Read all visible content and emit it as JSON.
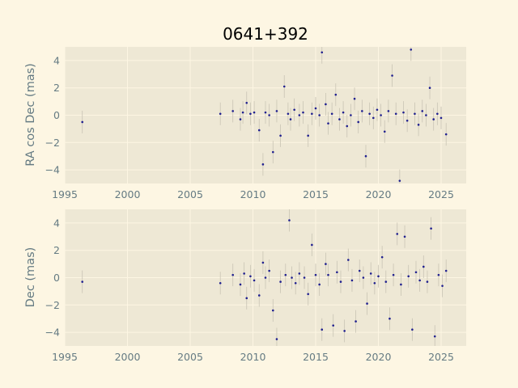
{
  "chart_data": [
    {
      "type": "scatter",
      "title": "0641+392",
      "xlabel": "",
      "ylabel": "RA cos Dec (mas)",
      "xlim": [
        1995,
        2027
      ],
      "ylim": [
        -5,
        5
      ],
      "xticks": [
        "1995",
        "2000",
        "2005",
        "2010",
        "2015",
        "2020",
        "2025"
      ],
      "yticks": [
        "−4",
        "−2",
        "0",
        "2",
        "4"
      ],
      "grid": true,
      "series": [
        {
          "color": "#1f1f8f",
          "x": [
            1996.4,
            2007.4,
            2008.4,
            2009.0,
            2009.2,
            2009.5,
            2009.8,
            2010.1,
            2010.5,
            2010.8,
            2011.0,
            2011.3,
            2011.6,
            2011.9,
            2012.2,
            2012.5,
            2012.8,
            2013.0,
            2013.3,
            2013.7,
            2014.0,
            2014.4,
            2014.7,
            2015.0,
            2015.3,
            2015.5,
            2015.8,
            2016.0,
            2016.3,
            2016.6,
            2016.9,
            2017.2,
            2017.5,
            2017.8,
            2018.1,
            2018.4,
            2018.7,
            2019.0,
            2019.3,
            2019.6,
            2019.9,
            2020.2,
            2020.5,
            2020.8,
            2021.1,
            2021.4,
            2021.7,
            2022.0,
            2022.3,
            2022.6,
            2022.9,
            2023.2,
            2023.5,
            2023.8,
            2024.1,
            2024.4,
            2024.7,
            2025.0,
            2025.4
          ],
          "y": [
            -0.5,
            0.1,
            0.3,
            -0.3,
            0.2,
            0.9,
            0.1,
            0.2,
            -1.1,
            -3.6,
            0.2,
            0.0,
            -2.7,
            0.3,
            -1.5,
            2.1,
            0.1,
            -0.3,
            0.4,
            0.0,
            0.2,
            -1.5,
            0.1,
            0.5,
            0.0,
            4.6,
            0.8,
            -0.6,
            0.1,
            1.5,
            -0.3,
            0.2,
            -0.8,
            0.0,
            1.2,
            -0.5,
            0.3,
            -3.0,
            0.1,
            -0.2,
            0.4,
            0.0,
            -1.2,
            0.3,
            2.9,
            0.1,
            -4.8,
            0.2,
            -0.4,
            4.8,
            0.1,
            -0.7,
            0.3,
            0.0,
            2.0,
            -0.3,
            0.1,
            -0.2,
            -1.4
          ]
        }
      ]
    },
    {
      "type": "scatter",
      "title": "",
      "xlabel": "",
      "ylabel": "Dec (mas)",
      "xlim": [
        1995,
        2027
      ],
      "ylim": [
        -5,
        5
      ],
      "xticks": [
        "1995",
        "2000",
        "2005",
        "2010",
        "2015",
        "2020",
        "2025"
      ],
      "yticks": [
        "−4",
        "−2",
        "0",
        "2",
        "4"
      ],
      "grid": true,
      "series": [
        {
          "color": "#1f1f8f",
          "x": [
            1996.4,
            2007.4,
            2008.4,
            2009.0,
            2009.3,
            2009.5,
            2009.8,
            2010.1,
            2010.5,
            2010.8,
            2011.0,
            2011.3,
            2011.6,
            2011.9,
            2012.2,
            2012.6,
            2012.9,
            2013.1,
            2013.4,
            2013.7,
            2014.1,
            2014.4,
            2014.7,
            2015.0,
            2015.3,
            2015.5,
            2015.8,
            2016.0,
            2016.4,
            2016.7,
            2017.0,
            2017.3,
            2017.6,
            2017.9,
            2018.2,
            2018.5,
            2018.8,
            2019.1,
            2019.4,
            2019.7,
            2020.0,
            2020.3,
            2020.6,
            2020.9,
            2021.2,
            2021.5,
            2021.8,
            2022.1,
            2022.4,
            2022.7,
            2023.0,
            2023.3,
            2023.6,
            2023.9,
            2024.2,
            2024.5,
            2024.8,
            2025.1,
            2025.4
          ],
          "y": [
            -0.3,
            -0.4,
            0.2,
            -0.5,
            0.3,
            -1.5,
            0.1,
            -0.2,
            -1.3,
            1.1,
            0.0,
            0.5,
            -2.4,
            -4.5,
            -0.3,
            0.2,
            4.2,
            0.0,
            -0.4,
            0.3,
            0.0,
            -1.2,
            2.4,
            0.2,
            -0.5,
            -3.8,
            1.0,
            0.2,
            -3.5,
            0.4,
            -0.3,
            -3.9,
            1.3,
            -0.2,
            -3.2,
            0.5,
            0.0,
            -1.9,
            0.3,
            -0.4,
            0.1,
            1.5,
            -0.3,
            -3.0,
            0.2,
            3.2,
            -0.5,
            3.0,
            0.1,
            -3.8,
            0.4,
            -0.2,
            0.8,
            -0.3,
            3.6,
            -4.3,
            0.2,
            -0.6,
            0.5
          ]
        }
      ]
    }
  ]
}
